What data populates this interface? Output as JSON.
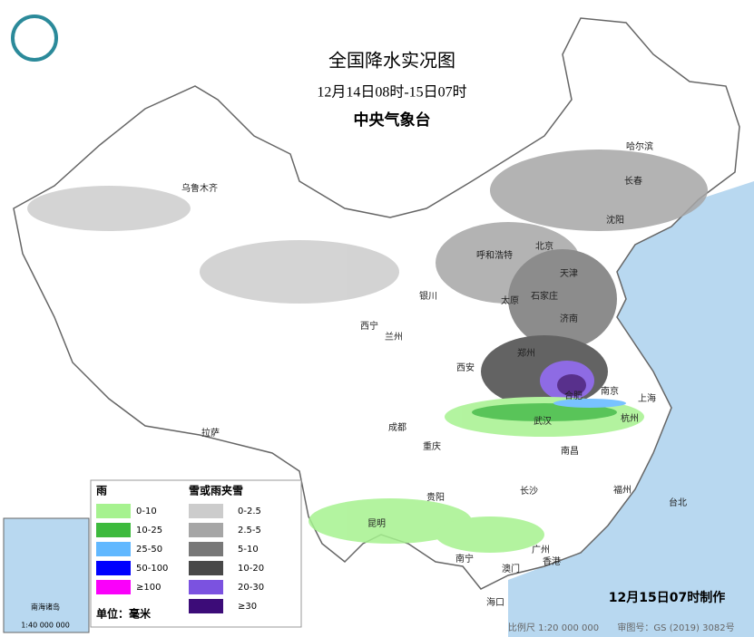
{
  "header": {
    "title": "全国降水实况图",
    "subtitle": "12月14日08时-15日07时",
    "agency": "中央气象台"
  },
  "legend": {
    "rain": {
      "title": "雨",
      "items": [
        {
          "label": "0-10",
          "color": "#a6f28f"
        },
        {
          "label": "10-25",
          "color": "#3dba3d"
        },
        {
          "label": "25-50",
          "color": "#61b8ff"
        },
        {
          "label": "50-100",
          "color": "#0000fe"
        },
        {
          "label": "≥100",
          "color": "#fa00fa"
        }
      ]
    },
    "snow": {
      "title": "雪或雨夹雪",
      "items": [
        {
          "label": "0-2.5",
          "color": "#cccccc"
        },
        {
          "label": "2.5-5",
          "color": "#a6a6a6"
        },
        {
          "label": "5-10",
          "color": "#787878"
        },
        {
          "label": "10-20",
          "color": "#484848"
        },
        {
          "label": "20-30",
          "color": "#7b52e0"
        },
        {
          "label": "≥30",
          "color": "#3c0c78"
        }
      ]
    },
    "unit": "单位：毫米"
  },
  "cities": [
    {
      "name": "乌鲁木齐"
    },
    {
      "name": "哈尔滨"
    },
    {
      "name": "长春"
    },
    {
      "name": "沈阳"
    },
    {
      "name": "呼和浩特"
    },
    {
      "name": "北京"
    },
    {
      "name": "天津"
    },
    {
      "name": "石家庄"
    },
    {
      "name": "太原"
    },
    {
      "name": "济南"
    },
    {
      "name": "银川"
    },
    {
      "name": "西宁"
    },
    {
      "name": "兰州"
    },
    {
      "name": "郑州"
    },
    {
      "name": "西安"
    },
    {
      "name": "合肥"
    },
    {
      "name": "南京"
    },
    {
      "name": "上海"
    },
    {
      "name": "武汉"
    },
    {
      "name": "杭州"
    },
    {
      "name": "成都"
    },
    {
      "name": "重庆"
    },
    {
      "name": "南昌"
    },
    {
      "name": "拉萨"
    },
    {
      "name": "长沙"
    },
    {
      "name": "福州"
    },
    {
      "name": "台北"
    },
    {
      "name": "贵阳"
    },
    {
      "name": "昆明"
    },
    {
      "name": "南宁"
    },
    {
      "name": "广州"
    },
    {
      "name": "澳门"
    },
    {
      "name": "香港"
    },
    {
      "name": "海口"
    }
  ],
  "inset": {
    "label": "南海诸岛",
    "scale": "1:40 000 000"
  },
  "footer": {
    "made": "12月15日07时制作",
    "scale": "比例尺 1:20 000 000",
    "review": "审图号：GS (2019) 3082号"
  }
}
